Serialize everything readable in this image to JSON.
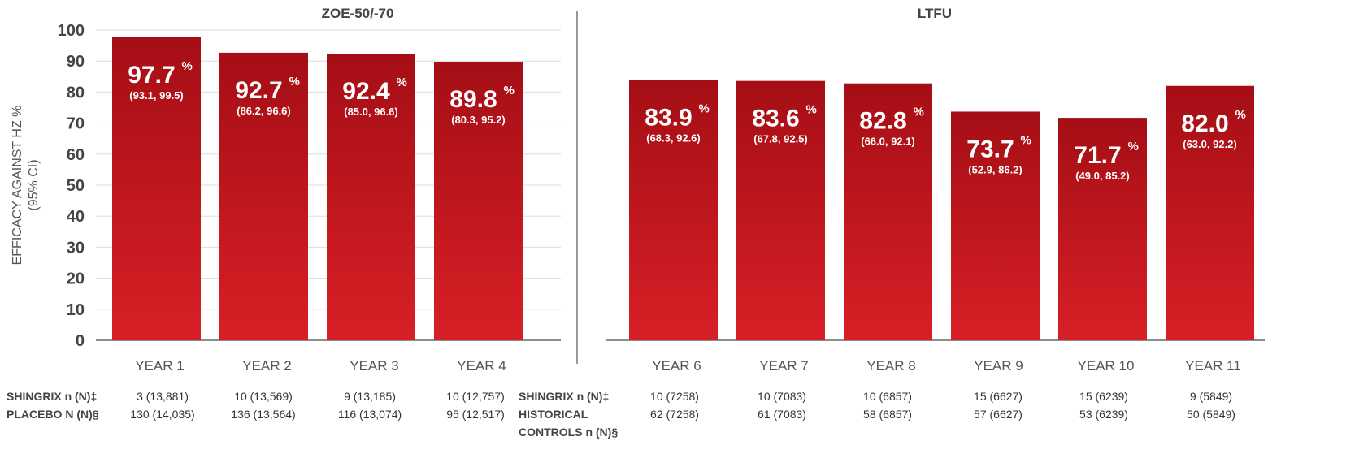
{
  "chart_data": {
    "type": "bar",
    "ylabel": "EFFICACY AGAINST HZ %",
    "ylabel2": "(95% CI)",
    "ylim": [
      0,
      100
    ],
    "yticks": [
      0,
      10,
      20,
      30,
      40,
      50,
      60,
      70,
      80,
      90,
      100
    ],
    "grid": true,
    "bar_color_top": "#a50e15",
    "bar_color_bottom": "#d81f26",
    "panels": [
      {
        "title": "ZOE-50/-70",
        "categories": [
          "YEAR 1",
          "YEAR 2",
          "YEAR 3",
          "YEAR 4"
        ],
        "values": [
          97.7,
          92.7,
          92.4,
          89.8
        ],
        "value_labels": [
          "97.7",
          "92.7",
          "92.4",
          "89.8"
        ],
        "ci_labels": [
          "(93.1, 99.5)",
          "(86.2, 96.6)",
          "(85.0, 96.6)",
          "(80.3, 95.2)"
        ]
      },
      {
        "title": "LTFU",
        "categories": [
          "YEAR 6",
          "YEAR 7",
          "YEAR 8",
          "YEAR 9",
          "YEAR 10",
          "YEAR 11"
        ],
        "values": [
          83.9,
          83.6,
          82.8,
          73.7,
          71.7,
          82.0
        ],
        "value_labels": [
          "83.9",
          "83.6",
          "82.8",
          "73.7",
          "71.7",
          "82.0"
        ],
        "ci_labels": [
          "(68.3, 92.6)",
          "(67.8, 92.5)",
          "(66.0, 92.1)",
          "(52.9, 86.2)",
          "(49.0, 85.2)",
          "(63.0, 92.2)"
        ]
      }
    ],
    "percent_sign": "%"
  },
  "table": {
    "left": {
      "row1_label": "SHINGRIX n (N)‡",
      "row2_label": "PLACEBO N (N)§",
      "row1": [
        "3 (13,881)",
        "10 (13,569)",
        "9 (13,185)",
        "10 (12,757)"
      ],
      "row2": [
        "130 (14,035)",
        "136 (13,564)",
        "116 (13,074)",
        "95 (12,517)"
      ]
    },
    "right": {
      "row1_label": "SHINGRIX n (N)‡",
      "row2_label_line1": "HISTORICAL",
      "row2_label_line2": "CONTROLS n (N)§",
      "row1": [
        "10 (7258)",
        "10 (7083)",
        "10 (6857)",
        "15 (6627)",
        "15 (6239)",
        "9 (5849)"
      ],
      "row2": [
        "62 (7258)",
        "61 (7083)",
        "58 (6857)",
        "57 (6627)",
        "53 (6239)",
        "50 (5849)"
      ]
    }
  }
}
